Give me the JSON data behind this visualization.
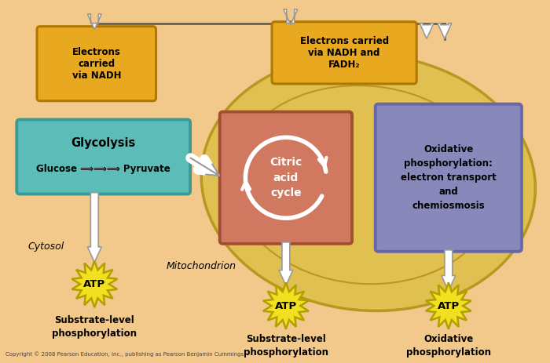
{
  "bg_color": "#f2c98a",
  "fig_width": 7.0,
  "fig_height": 4.63,
  "copyright": "Copyright © 2008 Pearson Education, Inc., publishing as Pearson Benjamin Cummings.",
  "mito_fill": "#e8c84a",
  "mito_fill2": "#ddb830",
  "mito_outline": "#b89820",
  "glycolysis_box": "#5bbcb8",
  "glycolysis_border": "#3a9a96",
  "citric_box": "#d07860",
  "citric_border": "#a05030",
  "ox_phos_box": "#8888bb",
  "ox_phos_border": "#6666aa",
  "electron_box": "#e8a820",
  "electron_border": "#b07800",
  "atp_fill": "#f0e020",
  "atp_border": "#b0a000",
  "arrow_white": "#ffffff",
  "arrow_gray": "#aaaaaa",
  "line_color": "#555555",
  "text_color": "#000000",
  "labels": {
    "glycolysis_title": "Glycolysis",
    "glycolysis_sub": "Glucose ⟹⟹⟹ Pyruvate",
    "citric_title": "Citric\nacid\ncycle",
    "ox_phos_title": "Oxidative\nphosphorylation:\nelectron transport\nand\nchemiosmosis",
    "electrons1": "Electrons\ncarried\nvia NADH",
    "electrons2": "Electrons carried\nvia NADH and\nFADH₂",
    "cytosol": "Cytosol",
    "mitochondrion": "Mitochondrion",
    "atp": "ATP",
    "sub_level1": "Substrate-level\nphosphorylation",
    "sub_level2": "Substrate-level\nphosphorylation",
    "ox_phos_label": "Oxidative\nphosphorylation"
  }
}
